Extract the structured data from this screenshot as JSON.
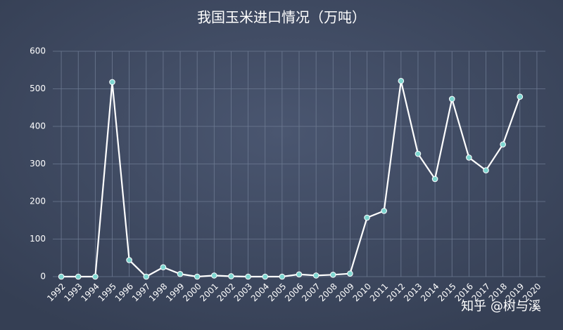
{
  "chart_data": {
    "type": "line",
    "title": "我国玉米进口情况（万吨）",
    "categories": [
      "1992",
      "1993",
      "1994",
      "1995",
      "1996",
      "1997",
      "1998",
      "1999",
      "2000",
      "2001",
      "2002",
      "2003",
      "2004",
      "2005",
      "2006",
      "2007",
      "2008",
      "2009",
      "2010",
      "2011",
      "2012",
      "2013",
      "2014",
      "2015",
      "2016",
      "2017",
      "2018",
      "2019",
      "2020"
    ],
    "values": [
      0,
      0,
      0,
      518,
      44,
      0,
      25,
      7,
      0,
      3,
      1,
      0,
      0,
      0,
      6,
      3,
      5,
      8,
      157,
      175,
      521,
      327,
      260,
      473,
      317,
      283,
      352,
      479,
      null
    ],
    "color": "#ffffff",
    "marker_color": "#7ed6d0",
    "ylim": [
      0,
      600
    ],
    "yticks": [
      0,
      100,
      200,
      300,
      400,
      500,
      600
    ],
    "grid": true,
    "watermark": "知乎 @树与溪"
  }
}
